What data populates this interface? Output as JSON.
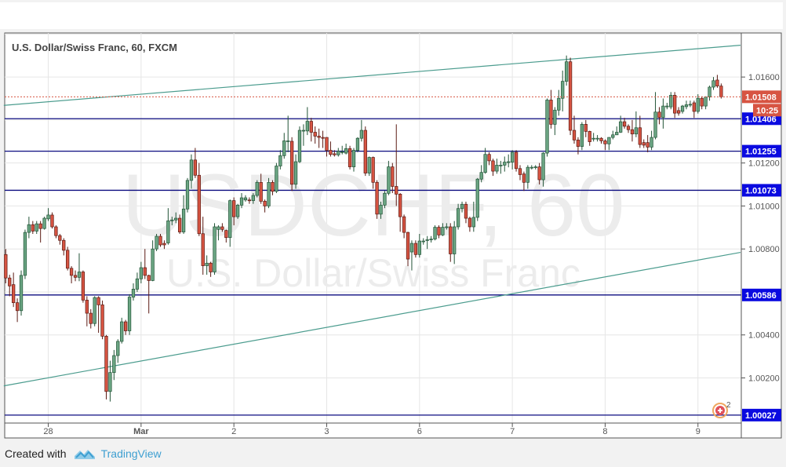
{
  "title": "U.S. Dollar/Swiss Franc, 60, FXCM",
  "watermark": {
    "symbol": "USDCHF, 60",
    "name": "U.S. Dollar/Swiss Franc"
  },
  "footer": {
    "created_with": "Created with",
    "brand": "TradingView"
  },
  "alert_badge": {
    "icon": "alert-clock-icon",
    "count": "2"
  },
  "colors": {
    "up": "#6ba583",
    "up_border": "#225437",
    "down": "#d75442",
    "down_border": "#5b1a13",
    "level": "#0c0c80",
    "level_label": "#0a0ae0",
    "trendline": "#4b9c8e",
    "last_price": "#d75442"
  },
  "chart_data": {
    "type": "candlestick",
    "title": "U.S. Dollar/Swiss Franc, 60, FXCM",
    "interval": "60",
    "ylim": [
      0.9999,
      1.01805
    ],
    "grid": true,
    "y_ticks": [
      "1.01600",
      "1.01200",
      "1.01000",
      "1.00800",
      "1.00400",
      "1.00200"
    ],
    "y_tick_values": [
      1.016,
      1.012,
      1.01,
      1.008,
      1.004,
      1.002
    ],
    "grid_values": [
      1.018,
      1.016,
      1.014,
      1.012,
      1.01,
      1.008,
      1.006,
      1.004,
      1.002
    ],
    "x_ticks": [
      {
        "label": "28",
        "bar": 11,
        "bold": false
      },
      {
        "label": "Mar",
        "bar": 35,
        "bold": true
      },
      {
        "label": "2",
        "bar": 59,
        "bold": false
      },
      {
        "label": "3",
        "bar": 83,
        "bold": false
      },
      {
        "label": "6",
        "bar": 107,
        "bold": false
      },
      {
        "label": "7",
        "bar": 131,
        "bold": false
      },
      {
        "label": "8",
        "bar": 155,
        "bold": false
      },
      {
        "label": "9",
        "bar": 179,
        "bold": false
      }
    ],
    "levels": [
      {
        "value": 1.01406,
        "label": "1.01406"
      },
      {
        "value": 1.01255,
        "label": "1.01255"
      },
      {
        "value": 1.01073,
        "label": "1.01073"
      },
      {
        "value": 1.00586,
        "label": "1.00586"
      },
      {
        "value": 1.00027,
        "label": "1.00027"
      }
    ],
    "trendlines": [
      {
        "from": {
          "bar": -0.5,
          "price": 1.01468
        },
        "to": {
          "bar": 190,
          "price": 1.01748
        }
      },
      {
        "from": {
          "bar": -0.5,
          "price": 1.00163
        },
        "to": {
          "bar": 190,
          "price": 1.00784
        }
      }
    ],
    "last_price": {
      "value": 1.01508,
      "label": "1.01508",
      "countdown": "10:25"
    },
    "candles_ohlc": [
      [
        1.00774,
        1.008,
        1.0064,
        1.00665
      ],
      [
        1.00665,
        1.0068,
        1.0058,
        1.00628
      ],
      [
        1.00634,
        1.0069,
        1.0053,
        1.0055
      ],
      [
        1.0055,
        1.0057,
        1.0046,
        1.00513
      ],
      [
        1.00513,
        1.007,
        1.0049,
        1.00677
      ],
      [
        1.00677,
        1.0089,
        1.0066,
        1.00877
      ],
      [
        1.00877,
        1.0095,
        1.0085,
        1.00913
      ],
      [
        1.00913,
        1.0093,
        1.0087,
        1.00883
      ],
      [
        1.00883,
        1.0093,
        1.0087,
        1.00917
      ],
      [
        1.00917,
        1.0093,
        1.0083,
        1.00895
      ],
      [
        1.00895,
        1.0095,
        1.0089,
        1.00943
      ],
      [
        1.0094,
        1.0099,
        1.0093,
        1.00958
      ],
      [
        1.00958,
        1.0097,
        1.00895,
        1.00903
      ],
      [
        1.00903,
        1.0091,
        1.0085,
        1.00862
      ],
      [
        1.00862,
        1.0087,
        1.0082,
        1.0084
      ],
      [
        1.0084,
        1.0085,
        1.0077,
        1.00794
      ],
      [
        1.00794,
        1.0081,
        1.007,
        1.0071
      ],
      [
        1.0071,
        1.0072,
        1.0064,
        1.00677
      ],
      [
        1.00677,
        1.007,
        1.0065,
        1.00668
      ],
      [
        1.00668,
        1.0078,
        1.0065,
        1.00693
      ],
      [
        1.00693,
        1.007,
        1.0055,
        1.00562
      ],
      [
        1.00562,
        1.0058,
        1.0044,
        1.00501
      ],
      [
        1.00501,
        1.0052,
        1.0043,
        1.00453
      ],
      [
        1.00453,
        1.0058,
        1.0044,
        1.00574
      ],
      [
        1.00574,
        1.0058,
        1.0041,
        1.0054
      ],
      [
        1.0054,
        1.0056,
        1.0038,
        1.00394
      ],
      [
        1.00394,
        1.004,
        1.001,
        1.00137
      ],
      [
        1.00137,
        1.0028,
        1.0009,
        1.00225
      ],
      [
        1.00225,
        1.0033,
        1.0019,
        1.00304
      ],
      [
        1.00304,
        1.0038,
        1.0027,
        1.0037
      ],
      [
        1.0037,
        1.0048,
        1.0036,
        1.00461
      ],
      [
        1.00461,
        1.0047,
        1.004,
        1.00419
      ],
      [
        1.00419,
        1.0059,
        1.004,
        1.00576
      ],
      [
        1.00576,
        1.0064,
        1.0056,
        1.00613
      ],
      [
        1.00613,
        1.0069,
        1.006,
        1.00661
      ],
      [
        1.00661,
        1.0074,
        1.0064,
        1.00713
      ],
      [
        1.00713,
        1.008,
        1.0066,
        1.00677
      ],
      [
        1.00677,
        1.0068,
        1.005,
        1.00653
      ],
      [
        1.00653,
        1.0084,
        1.0065,
        1.008
      ],
      [
        1.008,
        1.0087,
        1.0079,
        1.00859
      ],
      [
        1.00859,
        1.0087,
        1.0081,
        1.00819
      ],
      [
        1.00826,
        1.0084,
        1.008,
        1.00819
      ],
      [
        1.00828,
        1.0099,
        1.0082,
        1.00931
      ],
      [
        1.00931,
        1.0095,
        1.0091,
        1.00935
      ],
      [
        1.00935,
        1.0097,
        1.0092,
        1.00943
      ],
      [
        1.00943,
        1.0096,
        1.0087,
        1.00879
      ],
      [
        1.00879,
        1.0105,
        1.0087,
        1.00986
      ],
      [
        1.00986,
        1.0113,
        1.0097,
        1.01119
      ],
      [
        1.01119,
        1.0124,
        1.0108,
        1.01214
      ],
      [
        1.01214,
        1.0127,
        1.0113,
        1.01143
      ],
      [
        1.01143,
        1.012,
        1.0086,
        1.00871
      ],
      [
        1.00871,
        1.0095,
        1.0068,
        1.00722
      ],
      [
        1.00722,
        1.0077,
        1.0068,
        1.00734
      ],
      [
        1.00734,
        1.0074,
        1.0067,
        1.00693
      ],
      [
        1.00693,
        1.0092,
        1.0068,
        1.00903
      ],
      [
        1.00891,
        1.0091,
        1.0084,
        1.00903
      ],
      [
        1.00903,
        1.0092,
        1.0088,
        1.00891
      ],
      [
        1.00886,
        1.0089,
        1.0083,
        1.00853
      ],
      [
        1.00853,
        1.0103,
        1.0081,
        1.01025
      ],
      [
        1.01025,
        1.0104,
        1.0091,
        1.0095
      ],
      [
        1.0095,
        1.0101,
        1.0094,
        1.01004
      ],
      [
        1.01004,
        1.0106,
        1.0099,
        1.01038
      ],
      [
        1.01028,
        1.0105,
        1.0102,
        1.01038
      ],
      [
        1.01028,
        1.0104,
        1.0101,
        1.01025
      ],
      [
        1.01025,
        1.0106,
        1.0101,
        1.01049
      ],
      [
        1.01049,
        1.0112,
        1.0104,
        1.0111
      ],
      [
        1.0111,
        1.0115,
        1.0101,
        1.01022
      ],
      [
        1.01022,
        1.0103,
        1.0097,
        1.01
      ],
      [
        1.01,
        1.0113,
        1.0099,
        1.0111
      ],
      [
        1.0111,
        1.0112,
        1.0105,
        1.01068
      ],
      [
        1.01068,
        1.012,
        1.0106,
        1.01186
      ],
      [
        1.01186,
        1.0126,
        1.0117,
        1.01234
      ],
      [
        1.01234,
        1.0134,
        1.0122,
        1.01303
      ],
      [
        1.01301,
        1.0142,
        1.0125,
        1.01303
      ],
      [
        1.01301,
        1.0132,
        1.0107,
        1.01101
      ],
      [
        1.01101,
        1.0124,
        1.0108,
        1.01206
      ],
      [
        1.01206,
        1.0137,
        1.012,
        1.01352
      ],
      [
        1.01349,
        1.0138,
        1.0128,
        1.01352
      ],
      [
        1.01349,
        1.0146,
        1.0133,
        1.01394
      ],
      [
        1.01394,
        1.0141,
        1.013,
        1.01343
      ],
      [
        1.01343,
        1.0137,
        1.0129,
        1.01325
      ],
      [
        1.01325,
        1.0136,
        1.0127,
        1.01319
      ],
      [
        1.01319,
        1.0135,
        1.0127,
        1.01315
      ],
      [
        1.01319,
        1.0132,
        1.0123,
        1.01259
      ],
      [
        1.01259,
        1.013,
        1.0123,
        1.0124
      ],
      [
        1.01243,
        1.0126,
        1.0123,
        1.01238
      ],
      [
        1.01238,
        1.0127,
        1.0123,
        1.01255
      ],
      [
        1.01252,
        1.0128,
        1.0124,
        1.01252
      ],
      [
        1.01246,
        1.0129,
        1.0124,
        1.01267
      ],
      [
        1.01267,
        1.0128,
        1.0117,
        1.01182
      ],
      [
        1.01182,
        1.0127,
        1.0116,
        1.01259
      ],
      [
        1.01259,
        1.0132,
        1.0125,
        1.01315
      ],
      [
        1.01315,
        1.014,
        1.013,
        1.01352
      ],
      [
        1.01352,
        1.0137,
        1.0114,
        1.01153
      ],
      [
        1.01153,
        1.0123,
        1.0114,
        1.01226
      ],
      [
        1.01226,
        1.0123,
        1.0108,
        1.0111
      ],
      [
        1.0111,
        1.0112,
        1.0094,
        1.00962
      ],
      [
        1.00962,
        1.0102,
        1.0094,
        1.01004
      ],
      [
        1.01004,
        1.0107,
        1.0099,
        1.01059
      ],
      [
        1.01059,
        1.0121,
        1.0105,
        1.01182
      ],
      [
        1.01182,
        1.012,
        1.0106,
        1.01091
      ],
      [
        1.01091,
        1.0138,
        1.01,
        1.01055
      ],
      [
        1.01055,
        1.0106,
        1.0088,
        1.0095
      ],
      [
        1.0095,
        1.0096,
        1.0085,
        1.00877
      ],
      [
        1.00877,
        1.0088,
        1.0072,
        1.00753
      ],
      [
        1.00786,
        1.0084,
        1.007,
        1.00826
      ],
      [
        1.00826,
        1.0084,
        1.0076,
        1.00774
      ],
      [
        1.00774,
        1.0087,
        1.0076,
        1.00837
      ],
      [
        1.00837,
        1.0085,
        1.0082,
        1.00837
      ],
      [
        1.00843,
        1.0086,
        1.008,
        1.00843
      ],
      [
        1.00846,
        1.0086,
        1.0083,
        1.00846
      ],
      [
        1.00846,
        1.0091,
        1.0084,
        1.00901
      ],
      [
        1.00901,
        1.0091,
        1.0085,
        1.00865
      ],
      [
        1.00865,
        1.0092,
        1.0086,
        1.00901
      ],
      [
        1.00903,
        1.0092,
        1.0089,
        1.00903
      ],
      [
        1.00903,
        1.0092,
        1.0074,
        1.00777
      ],
      [
        1.00777,
        1.0093,
        1.0073,
        1.00903
      ],
      [
        1.00903,
        1.0101,
        1.0089,
        1.00988
      ],
      [
        1.00988,
        1.0102,
        1.0097,
        1.01008
      ],
      [
        1.01008,
        1.0102,
        1.0092,
        1.00943
      ],
      [
        1.00943,
        1.0095,
        1.0088,
        1.00903
      ],
      [
        1.00903,
        1.0102,
        1.0088,
        1.00947
      ],
      [
        1.00947,
        1.0113,
        1.0093,
        1.01125
      ],
      [
        1.01125,
        1.0119,
        1.0111,
        1.01156
      ],
      [
        1.01156,
        1.0127,
        1.0115,
        1.0124
      ],
      [
        1.0124,
        1.0125,
        1.0119,
        1.0121
      ],
      [
        1.0121,
        1.0122,
        1.0114,
        1.01162
      ],
      [
        1.01162,
        1.0122,
        1.0115,
        1.0119
      ],
      [
        1.0119,
        1.0121,
        1.0115,
        1.0119
      ],
      [
        1.0119,
        1.0123,
        1.0116,
        1.01204
      ],
      [
        1.01202,
        1.0124,
        1.0118,
        1.01206
      ],
      [
        1.01204,
        1.0126,
        1.0117,
        1.0125
      ],
      [
        1.0125,
        1.0126,
        1.0116,
        1.01174
      ],
      [
        1.01174,
        1.0119,
        1.0112,
        1.01146
      ],
      [
        1.01149,
        1.0116,
        1.0107,
        1.0111
      ],
      [
        1.0111,
        1.0119,
        1.0108,
        1.0118
      ],
      [
        1.0118,
        1.0119,
        1.0117,
        1.0118
      ],
      [
        1.01182,
        1.0119,
        1.0117,
        1.01182
      ],
      [
        1.01182,
        1.012,
        1.011,
        1.01122
      ],
      [
        1.01122,
        1.0125,
        1.0109,
        1.01246
      ],
      [
        1.01246,
        1.015,
        1.0123,
        1.01493
      ],
      [
        1.01493,
        1.0154,
        1.0136,
        1.0138
      ],
      [
        1.0138,
        1.0146,
        1.0133,
        1.01446
      ],
      [
        1.01446,
        1.0154,
        1.0142,
        1.01501
      ],
      [
        1.01501,
        1.0163,
        1.0144,
        1.0158
      ],
      [
        1.0158,
        1.017,
        1.0156,
        1.01671
      ],
      [
        1.01671,
        1.0169,
        1.0133,
        1.01352
      ],
      [
        1.01352,
        1.0142,
        1.0129,
        1.01307
      ],
      [
        1.01307,
        1.0132,
        1.0124,
        1.01277
      ],
      [
        1.01277,
        1.0139,
        1.0126,
        1.0138
      ],
      [
        1.0138,
        1.014,
        1.0132,
        1.01347
      ],
      [
        1.01347,
        1.0135,
        1.0128,
        1.01299
      ],
      [
        1.01315,
        1.0134,
        1.013,
        1.01315
      ],
      [
        1.01315,
        1.0133,
        1.013,
        1.01315
      ],
      [
        1.01315,
        1.0132,
        1.0129,
        1.01303
      ],
      [
        1.01303,
        1.0131,
        1.0126,
        1.01289
      ],
      [
        1.01289,
        1.0132,
        1.0126,
        1.01319
      ],
      [
        1.01319,
        1.0135,
        1.0131,
        1.01331
      ],
      [
        1.01331,
        1.0137,
        1.0133,
        1.01343
      ],
      [
        1.01343,
        1.0142,
        1.0134,
        1.01392
      ],
      [
        1.01392,
        1.0141,
        1.0136,
        1.01371
      ],
      [
        1.01371,
        1.0138,
        1.0134,
        1.01355
      ],
      [
        1.01355,
        1.014,
        1.013,
        1.01335
      ],
      [
        1.01335,
        1.0144,
        1.0132,
        1.01364
      ],
      [
        1.01364,
        1.0142,
        1.0127,
        1.01286
      ],
      [
        1.01295,
        1.0131,
        1.0127,
        1.01283
      ],
      [
        1.01295,
        1.0133,
        1.0125,
        1.01274
      ],
      [
        1.01274,
        1.0135,
        1.0126,
        1.01319
      ],
      [
        1.01319,
        1.0153,
        1.0131,
        1.01437
      ],
      [
        1.01437,
        1.0146,
        1.0138,
        1.01412
      ],
      [
        1.01412,
        1.015,
        1.0136,
        1.01465
      ],
      [
        1.01461,
        1.0148,
        1.0145,
        1.01465
      ],
      [
        1.01461,
        1.0153,
        1.0145,
        1.01515
      ],
      [
        1.01515,
        1.0153,
        1.0141,
        1.01432
      ],
      [
        1.01444,
        1.0146,
        1.0142,
        1.01432
      ],
      [
        1.0144,
        1.0147,
        1.0143,
        1.01465
      ],
      [
        1.01462,
        1.0149,
        1.0145,
        1.01471
      ],
      [
        1.01473,
        1.0149,
        1.0146,
        1.01473
      ],
      [
        1.0148,
        1.0149,
        1.0141,
        1.0144
      ],
      [
        1.0144,
        1.0152,
        1.0143,
        1.01501
      ],
      [
        1.01501,
        1.0151,
        1.0145,
        1.01465
      ],
      [
        1.01465,
        1.0151,
        1.0145,
        1.01507
      ],
      [
        1.01507,
        1.0156,
        1.0149,
        1.01553
      ],
      [
        1.01553,
        1.016,
        1.0154,
        1.01583
      ],
      [
        1.01586,
        1.0161,
        1.0155,
        1.01558
      ],
      [
        1.01558,
        1.0157,
        1.015,
        1.01508
      ]
    ]
  }
}
